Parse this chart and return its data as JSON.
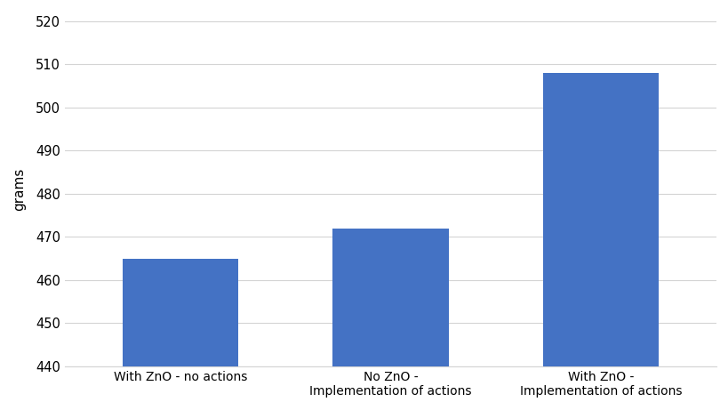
{
  "categories": [
    "With ZnO - no actions",
    "No ZnO -\nImplementation of actions",
    "With ZnO -\nImplementation of actions"
  ],
  "values": [
    465,
    472,
    508
  ],
  "bar_color": "#4472C4",
  "ylabel": "grams",
  "ylim": [
    440,
    522
  ],
  "yticks": [
    440,
    450,
    460,
    470,
    480,
    490,
    500,
    510,
    520
  ],
  "background_color": "#ffffff",
  "grid_color": "#d4d4d4",
  "bar_width": 0.55,
  "ylabel_fontsize": 11,
  "tick_fontsize": 10.5,
  "xlabel_fontsize": 10,
  "xlim": [
    -0.55,
    2.55
  ]
}
